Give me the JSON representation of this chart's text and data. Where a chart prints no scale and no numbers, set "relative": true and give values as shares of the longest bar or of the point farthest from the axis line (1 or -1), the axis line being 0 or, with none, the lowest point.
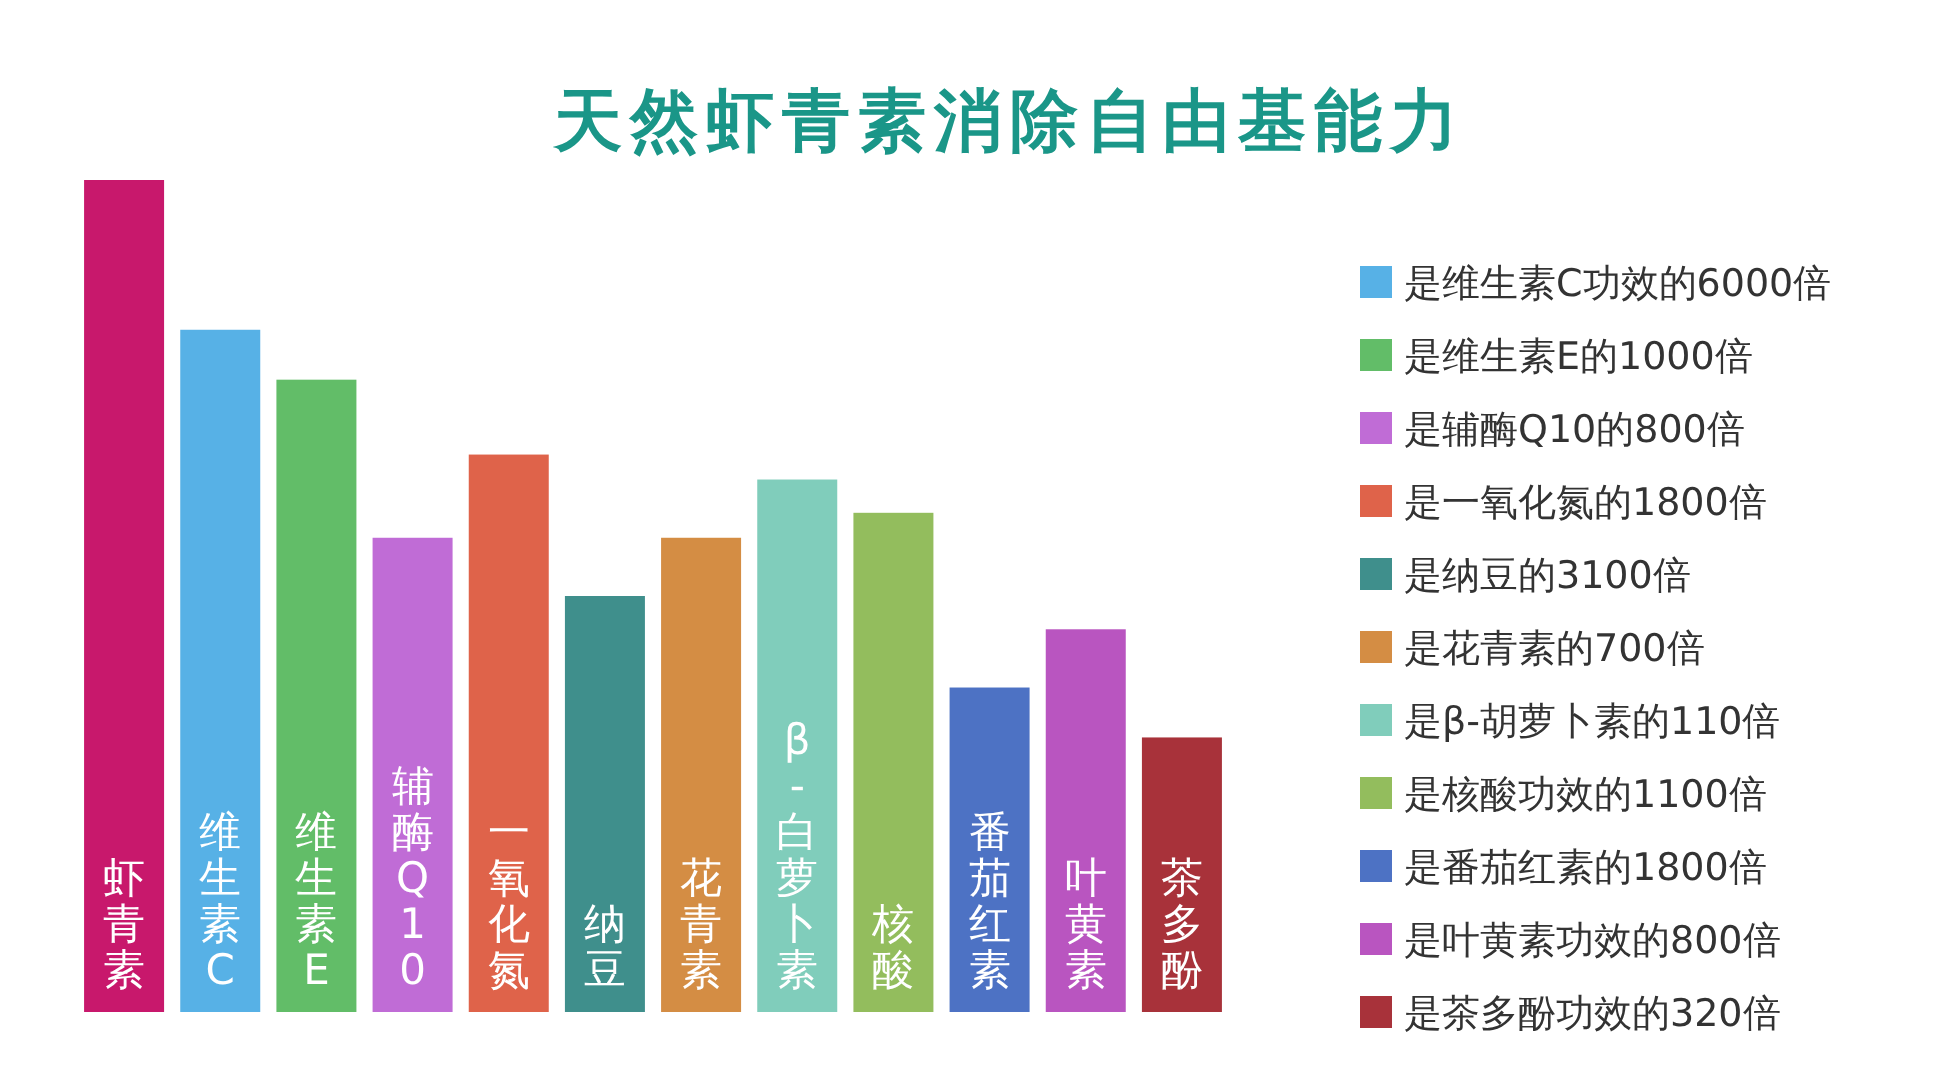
{
  "chart_data": {
    "type": "bar",
    "title": "天然虾青素消除自由基能力",
    "relative": true,
    "legend": "right",
    "categories": [
      "虾青素",
      "维生素C",
      "维生素E",
      "辅酶Q10",
      "一氧化氮",
      "纳豆",
      "花青素",
      "β-白萝卜素",
      "核酸",
      "番茄红素",
      "叶黄素",
      "茶多酚"
    ],
    "series": [
      {
        "name": null,
        "color": "#c8186c",
        "values": [
          1,
          null,
          null,
          null,
          null,
          null,
          null,
          null,
          null,
          null,
          null,
          null
        ]
      },
      {
        "name": "是维生素C功效的6000倍",
        "color": "#57b1e6",
        "values": [
          null,
          0.82,
          null,
          null,
          null,
          null,
          null,
          null,
          null,
          null,
          null,
          null
        ]
      },
      {
        "name": "是维生素E的1000倍",
        "color": "#62bd68",
        "values": [
          null,
          null,
          0.76,
          null,
          null,
          null,
          null,
          null,
          null,
          null,
          null,
          null
        ]
      },
      {
        "name": "是辅酶Q10的800倍",
        "color": "#c06cd6",
        "values": [
          null,
          null,
          null,
          0.57,
          null,
          null,
          null,
          null,
          null,
          null,
          null,
          null
        ]
      },
      {
        "name": "是一氧化氮的1800倍",
        "color": "#df634a",
        "values": [
          null,
          null,
          null,
          null,
          0.67,
          null,
          null,
          null,
          null,
          null,
          null,
          null
        ]
      },
      {
        "name": "是纳豆的3100倍",
        "color": "#3f8f8c",
        "values": [
          null,
          null,
          null,
          null,
          null,
          0.5,
          null,
          null,
          null,
          null,
          null,
          null
        ]
      },
      {
        "name": "是花青素的700倍",
        "color": "#d48d44",
        "values": [
          null,
          null,
          null,
          null,
          null,
          null,
          0.57,
          null,
          null,
          null,
          null,
          null
        ]
      },
      {
        "name": "是β-胡萝卜素的110倍",
        "color": "#80cdbb",
        "values": [
          null,
          null,
          null,
          null,
          null,
          null,
          null,
          0.64,
          null,
          null,
          null,
          null
        ]
      },
      {
        "name": "是核酸功效的1100倍",
        "color": "#93bd5d",
        "values": [
          null,
          null,
          null,
          null,
          null,
          null,
          null,
          null,
          0.6,
          null,
          null,
          null
        ]
      },
      {
        "name": "是番茄红素的1800倍",
        "color": "#4d72c4",
        "values": [
          null,
          null,
          null,
          null,
          null,
          null,
          null,
          null,
          null,
          0.39,
          null,
          null
        ]
      },
      {
        "name": "是叶黄素功效的800倍",
        "color": "#b955c0",
        "values": [
          null,
          null,
          null,
          null,
          null,
          null,
          null,
          null,
          null,
          null,
          0.46,
          null
        ]
      },
      {
        "name": "是茶多酚功效的320倍",
        "color": "#a8323a",
        "values": [
          null,
          null,
          null,
          null,
          null,
          null,
          null,
          null,
          null,
          null,
          null,
          0.33
        ]
      }
    ]
  }
}
